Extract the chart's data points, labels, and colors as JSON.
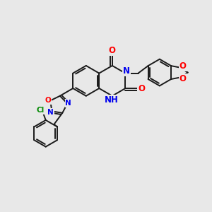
{
  "background_color": "#e8e8e8",
  "bond_color": "#1a1a1a",
  "bond_width": 1.4,
  "atom_colors": {
    "O": "#ff0000",
    "N": "#0000ee",
    "Cl": "#008800",
    "H": "#007070",
    "C": "#1a1a1a"
  },
  "font_size_main": 8.5,
  "font_size_small": 7.5
}
